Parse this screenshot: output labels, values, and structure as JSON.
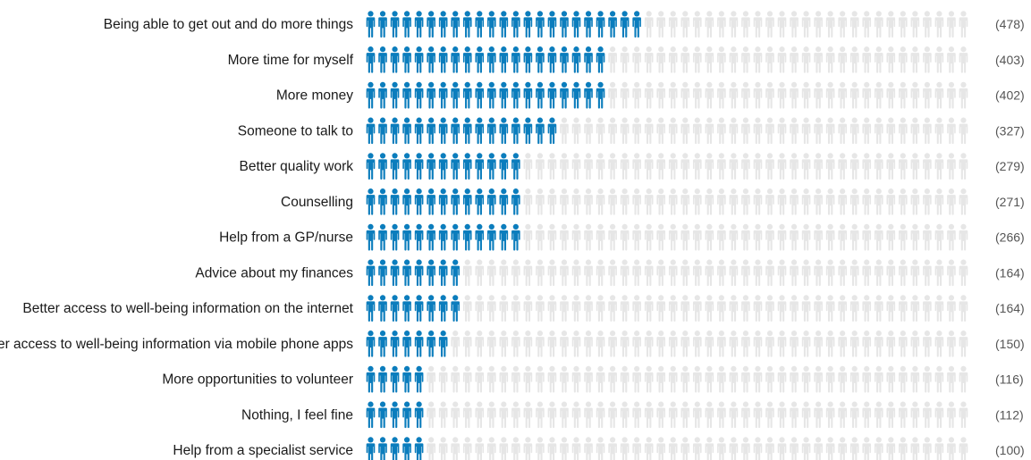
{
  "chart_data": {
    "type": "bar",
    "style": "pictogram",
    "title": "",
    "xlabel": "",
    "ylabel": "",
    "xlim": [
      0,
      1000
    ],
    "grid": false,
    "icon": "person-icon",
    "categories": [
      "Being able to get out and do more things",
      "More time for myself",
      "More money",
      "Someone to talk to",
      "Better quality work",
      "Counselling",
      "Help from a GP/nurse",
      "Advice about my finances",
      "Better access to well-being information on the internet",
      "Better access to well-being information via mobile phone apps",
      "More opportunities to volunteer",
      "Nothing, I feel fine",
      "Help from a specialist service"
    ],
    "values": [
      478,
      403,
      402,
      327,
      279,
      271,
      266,
      164,
      164,
      150,
      116,
      112,
      100
    ],
    "value_labels": [
      "(478)",
      "(403)",
      "(402)",
      "(327)",
      "(279)",
      "(271)",
      "(266)",
      "(164)",
      "(164)",
      "(150)",
      "(116)",
      "(112)",
      "(100)"
    ]
  },
  "colors": {
    "filled": "#0b7dbd",
    "empty": "#e6e6e6",
    "label": "#1a1a1a",
    "count": "#555555"
  }
}
